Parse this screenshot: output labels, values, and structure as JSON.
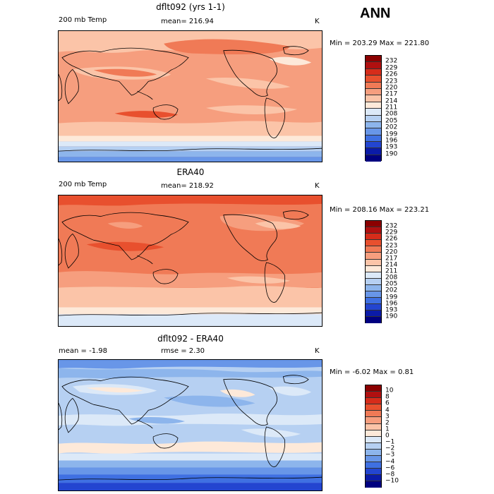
{
  "season": "ANN",
  "panels": [
    {
      "title": "dflt092 (yrs 1-1)",
      "left_label": "200 mb Temp",
      "stat_label": "mean= 216.94",
      "units": "K",
      "minmax": "Min = 203.29 Max = 221.80",
      "colorbar": [
        "232",
        "229",
        "226",
        "223",
        "220",
        "217",
        "214",
        "211",
        "208",
        "205",
        "202",
        "199",
        "196",
        "193",
        "190"
      ]
    },
    {
      "title": "ERA40",
      "left_label": "200 mb Temp",
      "stat_label": "mean= 218.92",
      "units": "K",
      "minmax": "Min = 208.16 Max = 223.21",
      "colorbar": [
        "232",
        "229",
        "226",
        "223",
        "220",
        "217",
        "214",
        "211",
        "208",
        "205",
        "202",
        "199",
        "196",
        "193",
        "190"
      ]
    },
    {
      "title": "dflt092 - ERA40",
      "left_label": "mean =   -1.98",
      "stat_label": "rmse =   2.30",
      "units": "K",
      "minmax": "Min =  -6.02 Max =   0.81",
      "colorbar": [
        "10",
        "8",
        "6",
        "4",
        "3",
        "2",
        "1",
        "0",
        "−1",
        "−2",
        "−3",
        "−4",
        "−6",
        "−8",
        "−10"
      ]
    }
  ],
  "colors": {
    "scale": [
      "#8b0000",
      "#b01010",
      "#d62c1a",
      "#e8502e",
      "#f07a56",
      "#f69e7e",
      "#fbc4a8",
      "#fde9d9",
      "#dce9f8",
      "#b6d0f2",
      "#8db5ec",
      "#6896e8",
      "#3f70e2",
      "#2345d0",
      "#0b1ba8",
      "#000080"
    ]
  }
}
